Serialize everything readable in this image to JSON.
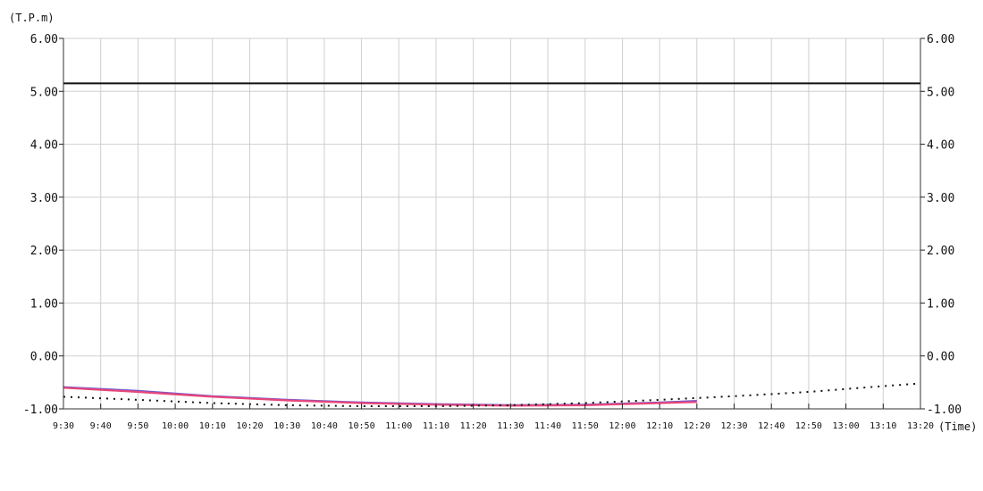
{
  "chart_data": {
    "type": "line",
    "ylabel": "(T.P.m)",
    "xlabel": "(Time)",
    "ylim": [
      -1.0,
      6.0
    ],
    "y_ticks": [
      "-1.00",
      "0.00",
      "1.00",
      "2.00",
      "3.00",
      "4.00",
      "5.00",
      "6.00"
    ],
    "x_ticks": [
      "9:30",
      "9:40",
      "9:50",
      "10:00",
      "10:10",
      "10:20",
      "10:30",
      "10:40",
      "10:50",
      "11:00",
      "11:10",
      "11:20",
      "11:30",
      "11:40",
      "11:50",
      "12:00",
      "12:10",
      "12:20",
      "12:30",
      "12:40",
      "12:50",
      "13:00",
      "13:10",
      "13:20"
    ],
    "grid": true,
    "reference_line": {
      "value": 5.15,
      "color": "#111111"
    },
    "series": [
      {
        "style": "solid",
        "color": "#6a5acd",
        "x": [
          "9:30",
          "9:50",
          "10:10",
          "10:30",
          "10:50",
          "11:10",
          "11:30",
          "11:50",
          "12:10",
          "12:20"
        ],
        "values": [
          -0.59,
          -0.66,
          -0.76,
          -0.83,
          -0.88,
          -0.91,
          -0.93,
          -0.92,
          -0.88,
          -0.85
        ]
      },
      {
        "style": "solid",
        "color": "#e8457a",
        "x": [
          "9:30",
          "9:50",
          "10:10",
          "10:30",
          "10:50",
          "11:10",
          "11:30",
          "11:50",
          "12:10",
          "12:20"
        ],
        "values": [
          -0.6,
          -0.68,
          -0.77,
          -0.84,
          -0.89,
          -0.92,
          -0.94,
          -0.93,
          -0.89,
          -0.87
        ]
      },
      {
        "style": "dotted",
        "color": "#111111",
        "x": [
          "9:30",
          "9:50",
          "10:10",
          "10:30",
          "10:50",
          "11:10",
          "11:30",
          "11:50",
          "12:10",
          "12:30",
          "12:50",
          "13:10",
          "13:20"
        ],
        "values": [
          -0.77,
          -0.83,
          -0.89,
          -0.93,
          -0.95,
          -0.95,
          -0.93,
          -0.89,
          -0.83,
          -0.76,
          -0.68,
          -0.57,
          -0.52
        ]
      }
    ]
  }
}
